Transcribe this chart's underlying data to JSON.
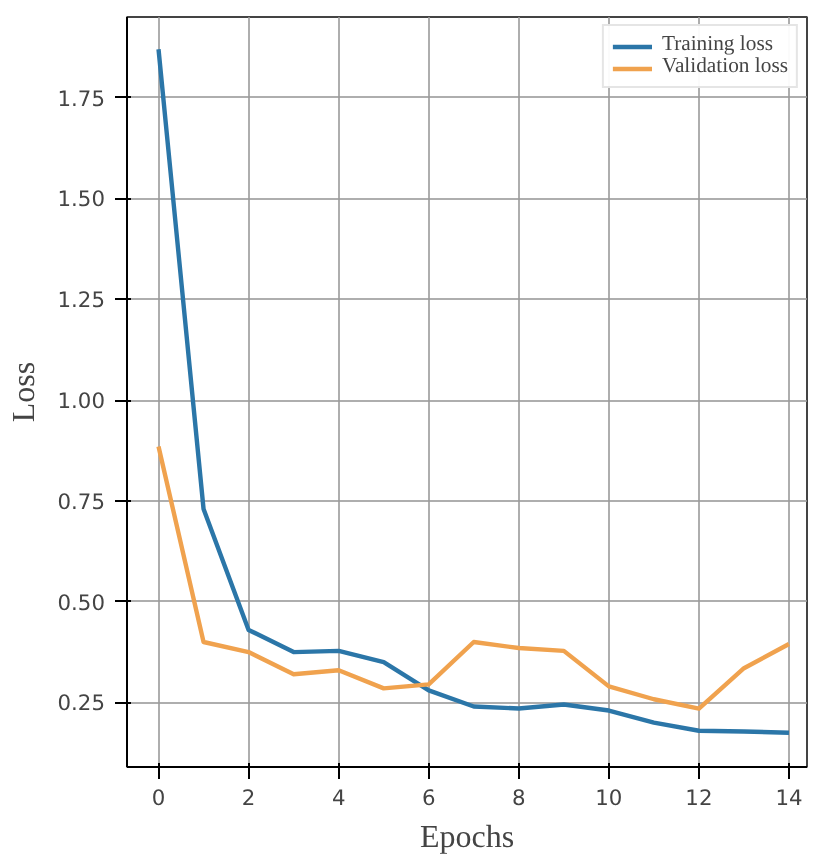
{
  "chart_data": {
    "type": "line",
    "xlabel": "Epochs",
    "ylabel": "Loss",
    "x": [
      0,
      1,
      2,
      3,
      4,
      5,
      6,
      7,
      8,
      9,
      10,
      11,
      12,
      13,
      14
    ],
    "series": [
      {
        "name": "Training loss",
        "color": "#2b76a8",
        "values": [
          1.87,
          0.73,
          0.43,
          0.375,
          0.378,
          0.35,
          0.28,
          0.24,
          0.235,
          0.245,
          0.23,
          0.2,
          0.18,
          0.178,
          0.175
        ]
      },
      {
        "name": "Validation loss",
        "color": "#f0a24e",
        "values": [
          0.885,
          0.4,
          0.375,
          0.32,
          0.33,
          0.285,
          0.295,
          0.4,
          0.385,
          0.378,
          0.29,
          0.258,
          0.235,
          0.335,
          0.395
        ]
      }
    ],
    "xlim": [
      -0.7,
      14.4
    ],
    "ylim": [
      0.09,
      1.95
    ],
    "xticks": [
      0,
      2,
      4,
      6,
      8,
      10,
      12,
      14
    ],
    "yticks": [
      {
        "value": 0.25,
        "label": "0.25"
      },
      {
        "value": 0.5,
        "label": "0.50"
      },
      {
        "value": 0.75,
        "label": "0.75"
      },
      {
        "value": 1.0,
        "label": "1.00"
      },
      {
        "value": 1.25,
        "label": "1.25"
      },
      {
        "value": 1.5,
        "label": "1.50"
      },
      {
        "value": 1.75,
        "label": "1.75"
      }
    ],
    "grid": true,
    "legend": "top right",
    "marker": "none",
    "line_style": "solid"
  }
}
